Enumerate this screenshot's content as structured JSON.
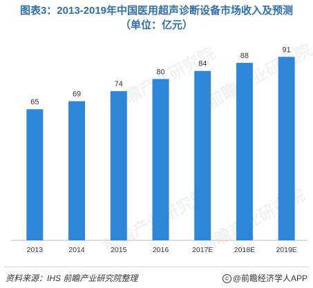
{
  "title": "图表3：2013-2019年中国医用超声诊断设备市场收入及预测",
  "subtitle": "（单位：亿元）",
  "watermark": "前瞻产业研究院",
  "source": {
    "label": "资料来源：IHS 前瞻产业研究院整理",
    "brand": "@前瞻经济学人APP",
    "icon": "copyright-icon"
  },
  "colors": {
    "bar": "#2e86d9",
    "title": "#2f6fa8"
  },
  "chart_data": {
    "type": "bar",
    "categories": [
      "2013",
      "2014",
      "2015",
      "2016",
      "2017E",
      "2018E",
      "2019E"
    ],
    "values": [
      65,
      69,
      74,
      80,
      84,
      88,
      91
    ],
    "title": "图表3：2013-2019年中国医用超声诊断设备市场收入及预测",
    "subtitle": "（单位：亿元）",
    "xlabel": "",
    "ylabel": "",
    "unit": "亿元",
    "ylim": [
      0,
      100
    ],
    "grid": false,
    "legend": "none",
    "data_labels": true
  }
}
